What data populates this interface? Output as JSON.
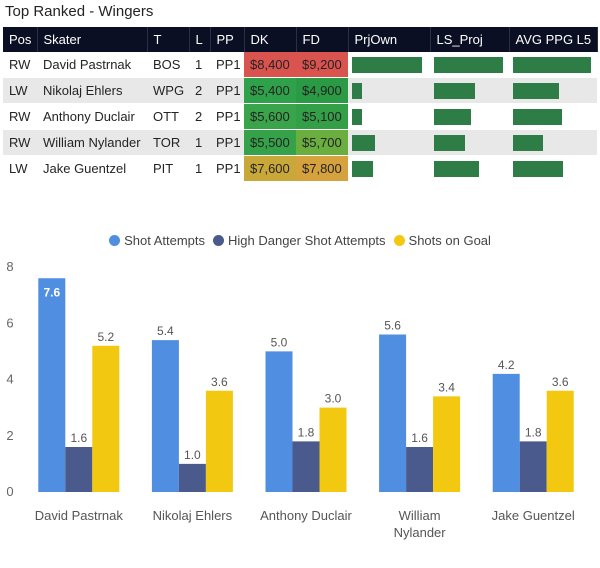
{
  "visual_title": "Top Ranked - Wingers",
  "table": {
    "headers": [
      "Pos",
      "Skater",
      "T",
      "L",
      "PP",
      "DK",
      "FD",
      "PrjOwn",
      "LS_Proj",
      "AVG PPG L5"
    ],
    "rows": [
      {
        "pos": "RW",
        "skater": "David Pastrnak",
        "team": "BOS",
        "line": "1",
        "pp": "PP1",
        "dk": "$8,400",
        "fd": "$9,200",
        "dk_color": "#d9534f",
        "fd_color": "#d9534f",
        "prjown": 0.95,
        "ls_proj": 0.97,
        "avg_ppg": 0.98
      },
      {
        "pos": "LW",
        "skater": "Nikolaj Ehlers",
        "team": "WPG",
        "line": "2",
        "pp": "PP1",
        "dk": "$5,400",
        "fd": "$4,900",
        "dk_color": "#2fa14a",
        "fd_color": "#2a9a45",
        "prjown": 0.13,
        "ls_proj": 0.58,
        "avg_ppg": 0.57
      },
      {
        "pos": "RW",
        "skater": "Anthony Duclair",
        "team": "OTT",
        "line": "2",
        "pp": "PP1",
        "dk": "$5,600",
        "fd": "$5,100",
        "dk_color": "#3aa44a",
        "fd_color": "#33a048",
        "prjown": 0.14,
        "ls_proj": 0.52,
        "avg_ppg": 0.61
      },
      {
        "pos": "RW",
        "skater": "William Nylander",
        "team": "TOR",
        "line": "1",
        "pp": "PP1",
        "dk": "$5,500",
        "fd": "$5,700",
        "dk_color": "#35a24a",
        "fd_color": "#6aae40",
        "prjown": 0.31,
        "ls_proj": 0.44,
        "avg_ppg": 0.37
      },
      {
        "pos": "LW",
        "skater": "Jake Guentzel",
        "team": "PIT",
        "line": "1",
        "pp": "PP1",
        "dk": "$7,600",
        "fd": "$7,800",
        "dk_color": "#c9a83a",
        "fd_color": "#d6a23e",
        "prjown": 0.28,
        "ls_proj": 0.64,
        "avg_ppg": 0.62
      }
    ]
  },
  "chart_data": {
    "type": "bar",
    "categories": [
      "David Pastrnak",
      "Nikolaj Ehlers",
      "Anthony Duclair",
      "William Nylander",
      "Jake Guentzel"
    ],
    "series": [
      {
        "name": "Shot Attempts",
        "color": "#4f8ee0",
        "values": [
          7.6,
          5.4,
          5.0,
          5.6,
          4.2
        ],
        "labels": [
          "7.6",
          "5.4",
          "5.0",
          "5.6",
          "4.2"
        ]
      },
      {
        "name": "High Danger Shot Attempts",
        "color": "#4a5a8c",
        "values": [
          1.6,
          1.0,
          1.8,
          1.6,
          1.8
        ],
        "labels": [
          "1.6",
          "1.0",
          "1.8",
          "1.6",
          "1.8"
        ]
      },
      {
        "name": "Shots on Goal",
        "color": "#f2c811",
        "values": [
          5.2,
          3.6,
          3.0,
          3.4,
          3.6
        ],
        "labels": [
          "5.2",
          "3.6",
          "3.0",
          "3.4",
          "3.6"
        ]
      }
    ],
    "y_ticks": [
      "0",
      "2",
      "4",
      "6",
      "8"
    ],
    "ylim": [
      0,
      8
    ],
    "legend_position": "top-center"
  }
}
